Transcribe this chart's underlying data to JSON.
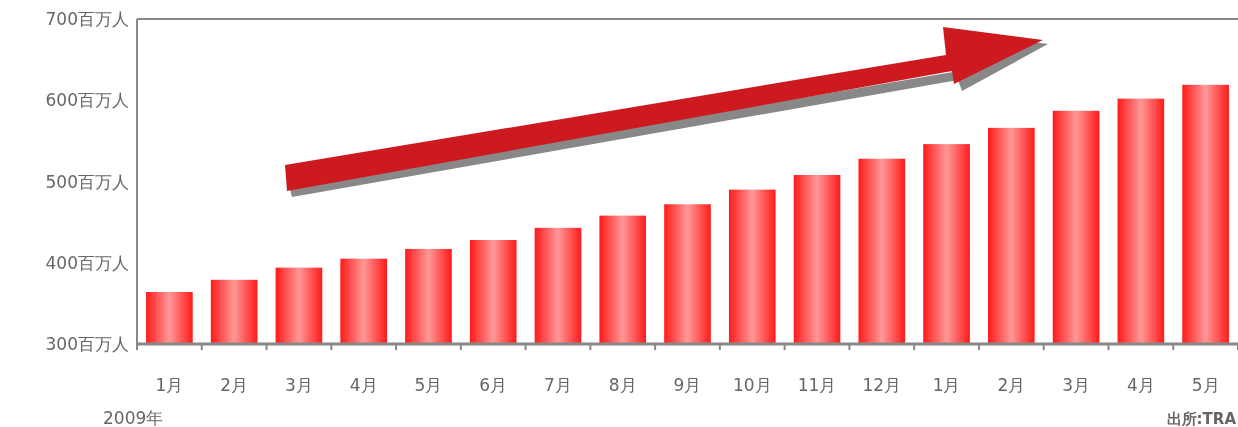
{
  "chart_data": {
    "type": "bar",
    "categories": [
      "1月",
      "2月",
      "3月",
      "4月",
      "5月",
      "6月",
      "7月",
      "8月",
      "9月",
      "10月",
      "11月",
      "12月",
      "1月",
      "2月",
      "3月",
      "4月",
      "5月"
    ],
    "values": [
      364,
      379,
      394,
      405,
      417,
      428,
      443,
      458,
      472,
      490,
      508,
      528,
      546,
      566,
      587,
      602,
      619
    ],
    "color": "#ff1a1a",
    "ylim": [
      300,
      700
    ],
    "yticks": [
      {
        "value": 300,
        "label": "300百万人"
      },
      {
        "value": 400,
        "label": "400百万人"
      },
      {
        "value": 500,
        "label": "500百万人"
      },
      {
        "value": 600,
        "label": "600百万人"
      },
      {
        "value": 700,
        "label": "700百万人"
      }
    ],
    "grid": false,
    "annotations": [
      "2009年",
      "出所:TRA"
    ]
  }
}
